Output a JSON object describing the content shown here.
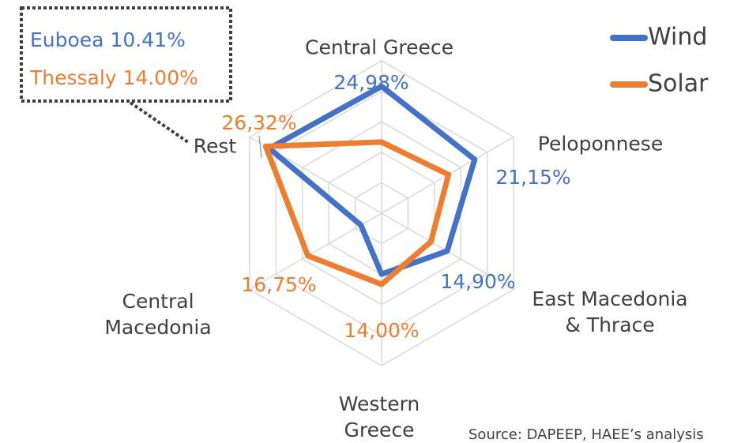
{
  "chart_data": {
    "type": "radar",
    "categories": [
      "Central Greece",
      "Peloponnese",
      "East Macedonia & Thrace",
      "Western Greece",
      "Central Macedonia",
      "Rest"
    ],
    "series": [
      {
        "name": "Wind",
        "color": "#4472c4",
        "values": [
          24.98,
          21.15,
          14.9,
          12,
          4.7,
          25.5
        ],
        "value_labels": [
          "24,98%",
          "21,15%",
          "14,90%",
          null,
          null,
          null
        ]
      },
      {
        "name": "Solar",
        "color": "#ed7d31",
        "values": [
          14,
          15.2,
          11.2,
          14.0,
          16.75,
          26.32
        ],
        "value_labels": [
          null,
          null,
          null,
          "14,00%",
          "16,75%",
          "26,32%"
        ]
      }
    ],
    "rlim": [
      0,
      30
    ],
    "rticks": [
      6,
      12,
      18,
      24,
      30
    ],
    "grid": true,
    "legend": "top-right",
    "annotation": [
      "Euboea 10.41%",
      "Thessaly 14.00%"
    ],
    "source": "Source: DAPEEP, HAEE’s analysis"
  }
}
